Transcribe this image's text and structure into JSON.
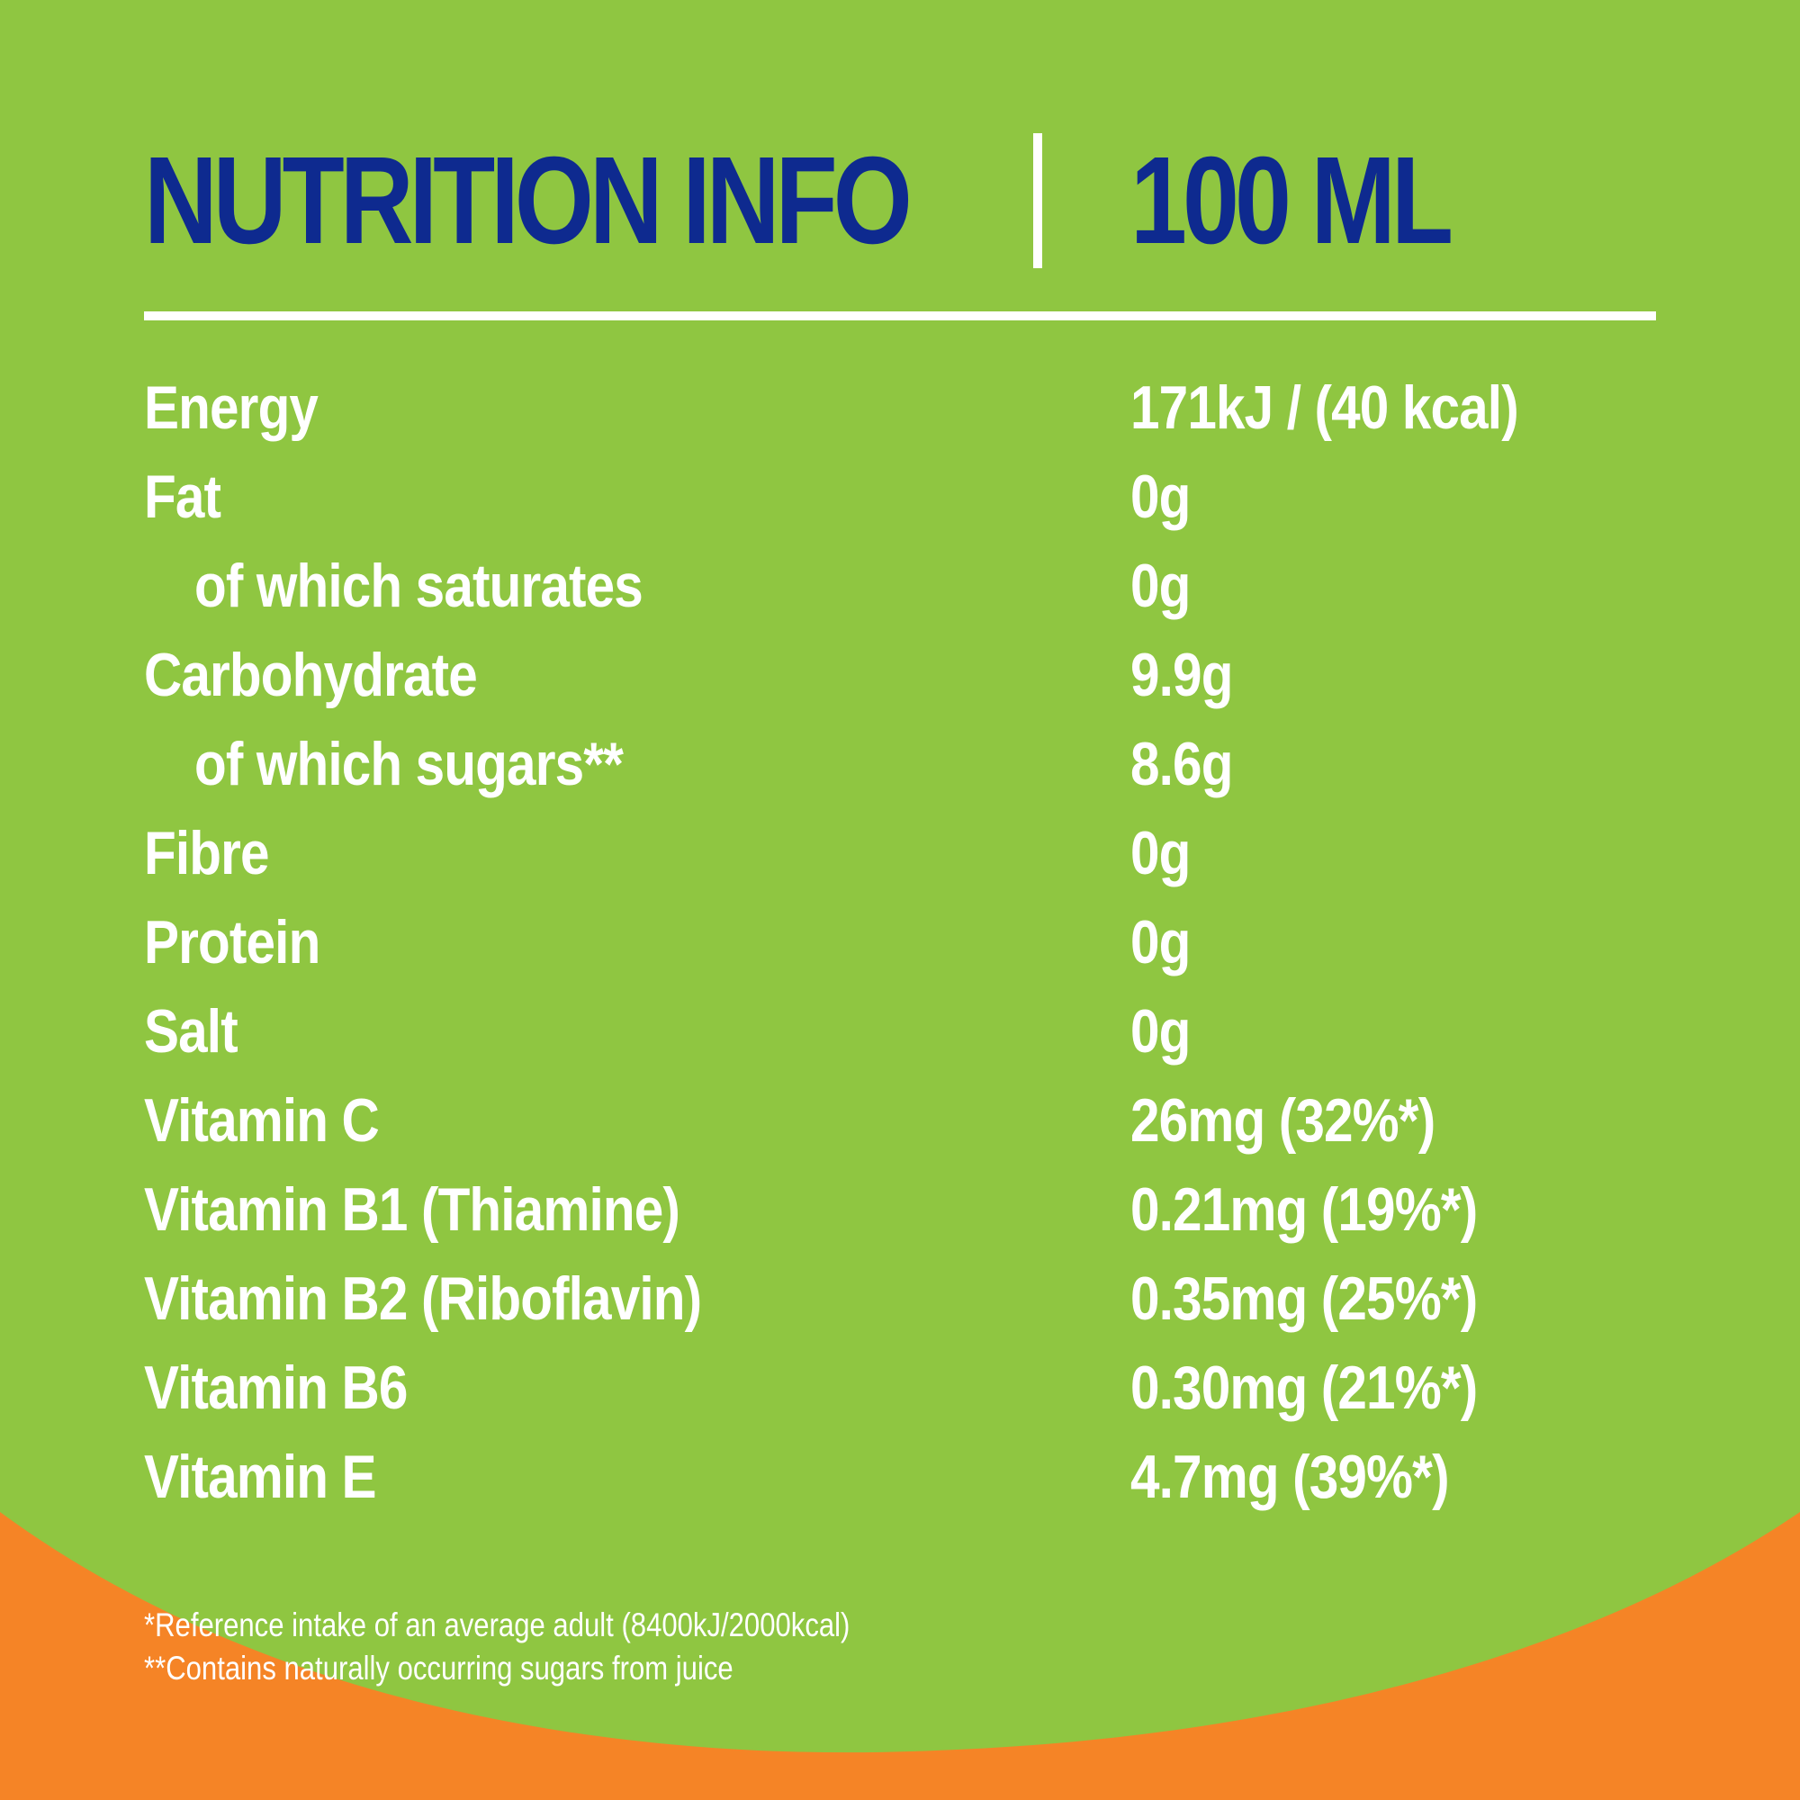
{
  "colors": {
    "background_green": "#8fc641",
    "accent_orange": "#f58426",
    "title_blue": "#0e2a8f",
    "text_white": "#ffffff"
  },
  "header": {
    "title": "NUTRITION INFO",
    "serving": "100 ML"
  },
  "nutrients": [
    {
      "name": "Energy",
      "value": "171kJ / (40 kcal)",
      "indent": false
    },
    {
      "name": "Fat",
      "value": "0g",
      "indent": false
    },
    {
      "name": "of which saturates",
      "value": "0g",
      "indent": true
    },
    {
      "name": "Carbohydrate",
      "value": "9.9g",
      "indent": false
    },
    {
      "name": "of which sugars**",
      "value": "8.6g",
      "indent": true
    },
    {
      "name": "Fibre",
      "value": "0g",
      "indent": false
    },
    {
      "name": "Protein",
      "value": "0g",
      "indent": false
    },
    {
      "name": "Salt",
      "value": "0g",
      "indent": false
    },
    {
      "name": "Vitamin C",
      "value": "26mg (32%*)",
      "indent": false
    },
    {
      "name": "Vitamin B1 (Thiamine)",
      "value": "0.21mg (19%*)",
      "indent": false
    },
    {
      "name": "Vitamin B2 (Riboflavin)",
      "value": "0.35mg (25%*)",
      "indent": false
    },
    {
      "name": "Vitamin B6",
      "value": "0.30mg (21%*)",
      "indent": false
    },
    {
      "name": "Vitamin E",
      "value": "4.7mg (39%*)",
      "indent": false
    }
  ],
  "footnotes": [
    "*Reference intake of an average adult (8400kJ/2000kcal)",
    "**Contains naturally occurring sugars from juice"
  ]
}
